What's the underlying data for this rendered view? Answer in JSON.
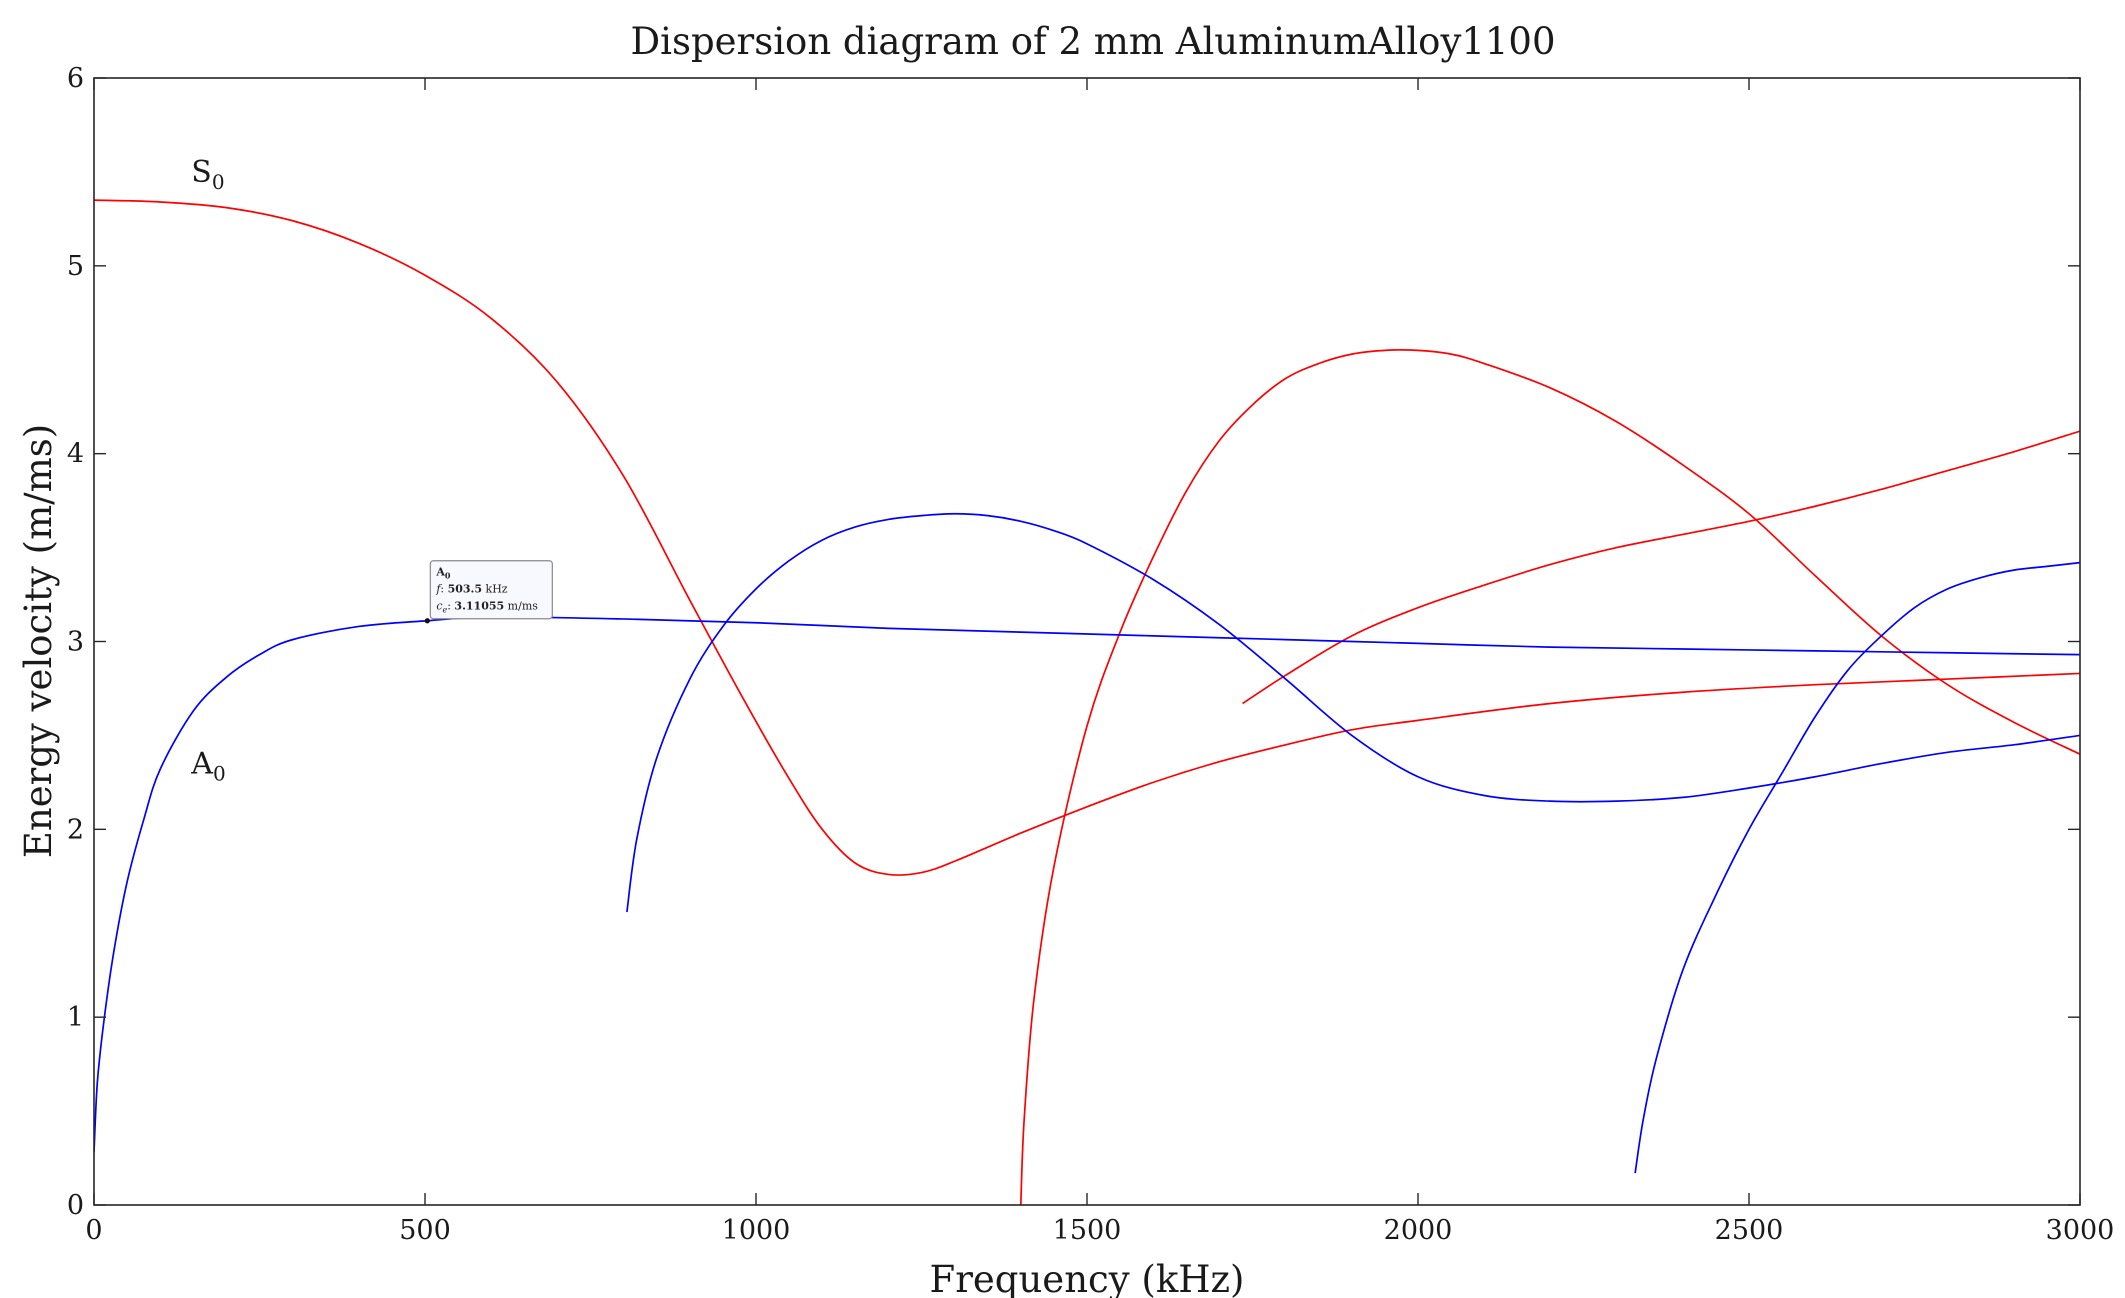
{
  "chart_data": {
    "type": "line",
    "title": "Dispersion diagram of 2 mm AluminumAlloy1100",
    "xlabel": "Frequency (kHz)",
    "ylabel": "Energy velocity (m/ms)",
    "xlim": [
      0,
      3000
    ],
    "ylim": [
      0,
      6
    ],
    "xticks": [
      0,
      500,
      1000,
      1500,
      2000,
      2500,
      3000
    ],
    "yticks": [
      0,
      1,
      2,
      3,
      4,
      5,
      6
    ],
    "grid": false,
    "colors": {
      "symmetric": "#ff0000",
      "antisymmetric": "#0000ff"
    },
    "mode_labels": [
      {
        "text": "S",
        "sub": "0",
        "x": 150,
        "y": 5.5
      },
      {
        "text": "A",
        "sub": "0",
        "x": 150,
        "y": 2.35
      }
    ],
    "datatip": {
      "x": 503.5,
      "y": 3.11055,
      "mode": "A",
      "mode_sub": "0",
      "f_label": "f",
      "f_value": "503.5",
      "f_unit": "kHz",
      "ce_label": "c",
      "ce_sub": "e",
      "ce_value": "3.11055",
      "ce_unit": "m/ms"
    },
    "series": [
      {
        "family": "symmetric",
        "points": [
          [
            0,
            5.35
          ],
          [
            100,
            5.34
          ],
          [
            200,
            5.31
          ],
          [
            300,
            5.24
          ],
          [
            400,
            5.12
          ],
          [
            500,
            4.95
          ],
          [
            600,
            4.72
          ],
          [
            700,
            4.38
          ],
          [
            800,
            3.88
          ],
          [
            900,
            3.22
          ],
          [
            980,
            2.7
          ],
          [
            1050,
            2.27
          ],
          [
            1100,
            2.0
          ],
          [
            1150,
            1.82
          ],
          [
            1200,
            1.76
          ],
          [
            1250,
            1.77
          ],
          [
            1300,
            1.83
          ],
          [
            1400,
            1.98
          ],
          [
            1500,
            2.12
          ],
          [
            1600,
            2.25
          ],
          [
            1700,
            2.36
          ],
          [
            1800,
            2.45
          ],
          [
            1900,
            2.53
          ],
          [
            2000,
            2.58
          ],
          [
            2200,
            2.67
          ],
          [
            2400,
            2.73
          ],
          [
            2600,
            2.77
          ],
          [
            2800,
            2.8
          ],
          [
            3000,
            2.83
          ]
        ]
      },
      {
        "family": "symmetric",
        "points": [
          [
            1400,
            0.0
          ],
          [
            1405,
            0.45
          ],
          [
            1420,
            1.1
          ],
          [
            1450,
            1.8
          ],
          [
            1500,
            2.55
          ],
          [
            1550,
            3.05
          ],
          [
            1600,
            3.45
          ],
          [
            1650,
            3.8
          ],
          [
            1700,
            4.07
          ],
          [
            1750,
            4.26
          ],
          [
            1800,
            4.4
          ],
          [
            1850,
            4.48
          ],
          [
            1900,
            4.53
          ],
          [
            1950,
            4.55
          ],
          [
            2000,
            4.55
          ],
          [
            2050,
            4.53
          ],
          [
            2100,
            4.48
          ],
          [
            2200,
            4.35
          ],
          [
            2300,
            4.17
          ],
          [
            2400,
            3.94
          ],
          [
            2500,
            3.68
          ],
          [
            2600,
            3.35
          ],
          [
            2700,
            3.03
          ],
          [
            2800,
            2.77
          ],
          [
            2900,
            2.57
          ],
          [
            3000,
            2.4
          ]
        ]
      },
      {
        "family": "symmetric",
        "points": [
          [
            1735,
            2.67
          ],
          [
            1800,
            2.82
          ],
          [
            1900,
            3.03
          ],
          [
            2000,
            3.18
          ],
          [
            2100,
            3.3
          ],
          [
            2200,
            3.41
          ],
          [
            2300,
            3.5
          ],
          [
            2400,
            3.57
          ],
          [
            2500,
            3.64
          ],
          [
            2600,
            3.72
          ],
          [
            2700,
            3.81
          ],
          [
            2800,
            3.91
          ],
          [
            2900,
            4.01
          ],
          [
            3000,
            4.12
          ]
        ]
      },
      {
        "family": "antisymmetric",
        "points": [
          [
            0,
            0.28
          ],
          [
            5,
            0.65
          ],
          [
            15,
            0.98
          ],
          [
            30,
            1.35
          ],
          [
            50,
            1.72
          ],
          [
            75,
            2.05
          ],
          [
            100,
            2.32
          ],
          [
            150,
            2.63
          ],
          [
            200,
            2.81
          ],
          [
            250,
            2.93
          ],
          [
            300,
            3.01
          ],
          [
            400,
            3.08
          ],
          [
            503.5,
            3.11055
          ],
          [
            600,
            3.13
          ],
          [
            800,
            3.12
          ],
          [
            1000,
            3.1
          ],
          [
            1200,
            3.07
          ],
          [
            1400,
            3.05
          ],
          [
            1600,
            3.03
          ],
          [
            1800,
            3.01
          ],
          [
            2000,
            2.99
          ],
          [
            2200,
            2.97
          ],
          [
            2400,
            2.96
          ],
          [
            2600,
            2.95
          ],
          [
            2800,
            2.94
          ],
          [
            3000,
            2.93
          ]
        ]
      },
      {
        "family": "antisymmetric",
        "points": [
          [
            805,
            1.56
          ],
          [
            820,
            1.95
          ],
          [
            850,
            2.38
          ],
          [
            900,
            2.8
          ],
          [
            950,
            3.08
          ],
          [
            1000,
            3.28
          ],
          [
            1050,
            3.43
          ],
          [
            1100,
            3.54
          ],
          [
            1150,
            3.61
          ],
          [
            1200,
            3.65
          ],
          [
            1250,
            3.67
          ],
          [
            1300,
            3.68
          ],
          [
            1350,
            3.67
          ],
          [
            1400,
            3.64
          ],
          [
            1450,
            3.59
          ],
          [
            1500,
            3.52
          ],
          [
            1600,
            3.33
          ],
          [
            1700,
            3.09
          ],
          [
            1800,
            2.8
          ],
          [
            1900,
            2.5
          ],
          [
            2000,
            2.28
          ],
          [
            2100,
            2.18
          ],
          [
            2200,
            2.15
          ],
          [
            2300,
            2.15
          ],
          [
            2400,
            2.17
          ],
          [
            2500,
            2.22
          ],
          [
            2600,
            2.28
          ],
          [
            2700,
            2.35
          ],
          [
            2800,
            2.41
          ],
          [
            2900,
            2.45
          ],
          [
            3000,
            2.5
          ]
        ]
      },
      {
        "family": "antisymmetric",
        "points": [
          [
            2328,
            0.17
          ],
          [
            2340,
            0.45
          ],
          [
            2360,
            0.78
          ],
          [
            2400,
            1.25
          ],
          [
            2450,
            1.65
          ],
          [
            2500,
            2.0
          ],
          [
            2550,
            2.3
          ],
          [
            2600,
            2.6
          ],
          [
            2650,
            2.85
          ],
          [
            2700,
            3.03
          ],
          [
            2750,
            3.18
          ],
          [
            2800,
            3.28
          ],
          [
            2850,
            3.34
          ],
          [
            2900,
            3.38
          ],
          [
            2950,
            3.4
          ],
          [
            3000,
            3.42
          ]
        ]
      }
    ]
  }
}
